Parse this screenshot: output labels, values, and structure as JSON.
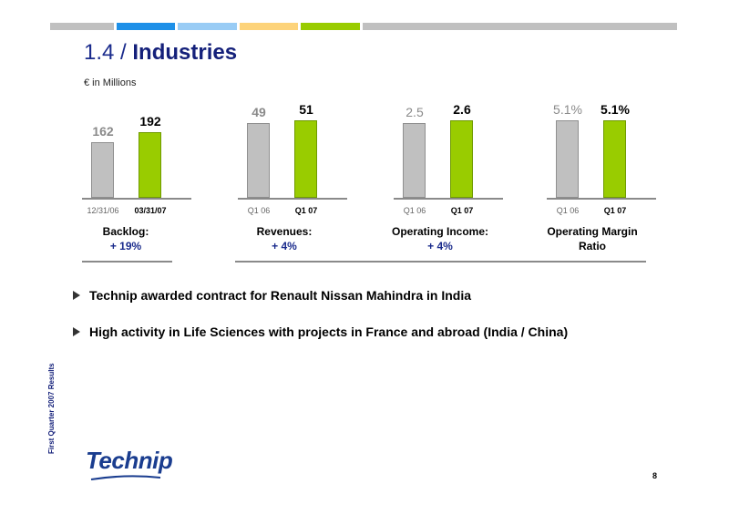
{
  "header": {
    "bar_colors": [
      "#c0c0c0",
      "#1e90e8",
      "#99ccf5",
      "#fdd37a",
      "#99cc00",
      "#c0c0c0"
    ]
  },
  "slide": {
    "title_num": "1.4 /",
    "title_name": "Industries",
    "units": "€ in Millions"
  },
  "chart_data": [
    {
      "type": "bar",
      "categories": [
        "12/31/06",
        "03/31/07"
      ],
      "values": [
        162,
        192
      ],
      "value_labels": [
        "162",
        "192"
      ],
      "caption_line1": "Backlog:",
      "caption_line2": "+ 19%"
    },
    {
      "type": "bar",
      "categories": [
        "Q1 06",
        "Q1 07"
      ],
      "values": [
        49,
        51
      ],
      "value_labels": [
        "49",
        "51"
      ],
      "caption_line1": "Revenues:",
      "caption_line2": "+ 4%"
    },
    {
      "type": "bar",
      "categories": [
        "Q1 06",
        "Q1 07"
      ],
      "values": [
        2.5,
        2.6
      ],
      "value_labels": [
        "2.5",
        "2.6"
      ],
      "caption_line1": "Operating Income:",
      "caption_line2": "+ 4%"
    },
    {
      "type": "bar",
      "categories": [
        "Q1 06",
        "Q1 07"
      ],
      "values": [
        5.1,
        5.1
      ],
      "value_labels": [
        "5.1%",
        "5.1%"
      ],
      "caption_line1": "Operating Margin",
      "caption_line2": "Ratio"
    }
  ],
  "bullets": [
    "Technip awarded contract for Renault Nissan Mahindra in India",
    "High activity in Life Sciences with projects in France and abroad (India / China)"
  ],
  "footer": {
    "side_text": "First Quarter 2007 Results",
    "logo_text": "Technip",
    "page_number": "8"
  }
}
